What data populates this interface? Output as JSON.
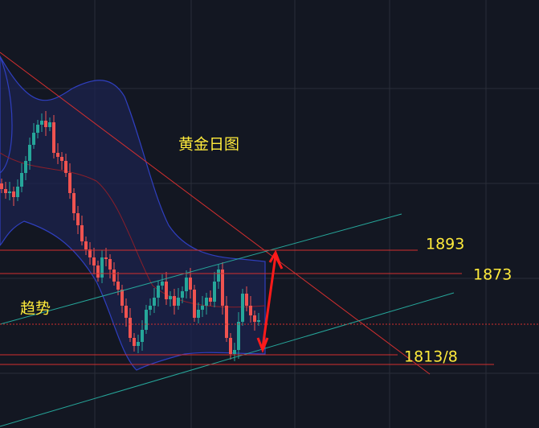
{
  "annotations": {
    "title": "黄金日图",
    "trend": "趋势",
    "levels": [
      "1893",
      "1873",
      "1813/8"
    ]
  }
}
